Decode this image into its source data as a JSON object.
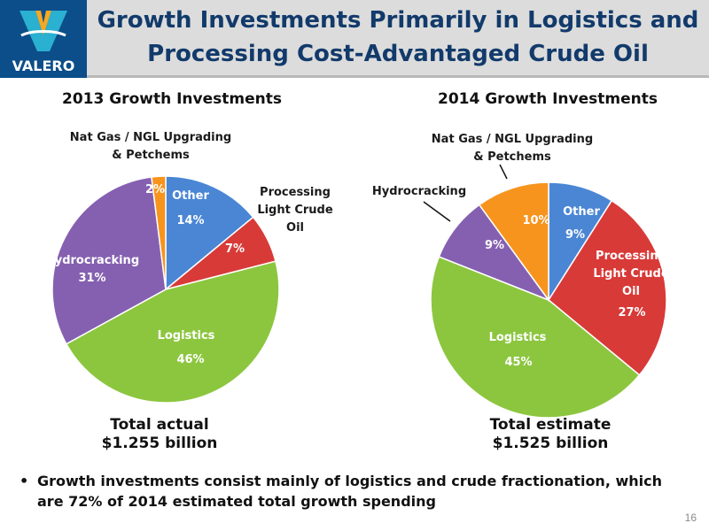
{
  "header": {
    "logo_text": "VALERO",
    "title": "Growth Investments Primarily in Logistics and\nProcessing Cost-Advantaged Crude Oil"
  },
  "chart_data": [
    {
      "type": "pie",
      "title": "2013 Growth Investments",
      "slices": [
        {
          "name": "Other",
          "value": 14,
          "label": "14%",
          "color": "#4a86d4"
        },
        {
          "name": "Processing Light Crude Oil",
          "value": 7,
          "label": "7%",
          "color": "#d83a38"
        },
        {
          "name": "Logistics",
          "value": 46,
          "label": "46%",
          "color": "#8cc63f"
        },
        {
          "name": "Hydrocracking",
          "value": 31,
          "label": "31%",
          "color": "#8560b0"
        },
        {
          "name": "Nat Gas / NGL Upgrading & Petchems",
          "value": 2,
          "label": "2%",
          "color": "#f7941d"
        }
      ],
      "labels": {
        "other": "Other",
        "processing": "Processing\nLight Crude\nOil",
        "logistics": "Logistics",
        "hydrocracking": "Hydrocracking",
        "natgas": "Nat Gas / NGL Upgrading\n& Petchems"
      },
      "total": "Total actual\n$1.255 billion"
    },
    {
      "type": "pie",
      "title": "2014 Growth Investments",
      "slices": [
        {
          "name": "Other",
          "value": 9,
          "label": "9%",
          "color": "#4a86d4"
        },
        {
          "name": "Processing Light Crude Oil",
          "value": 27,
          "label": "27%",
          "color": "#d83a38"
        },
        {
          "name": "Logistics",
          "value": 45,
          "label": "45%",
          "color": "#8cc63f"
        },
        {
          "name": "Hydrocracking",
          "value": 9,
          "label": "9%",
          "color": "#8560b0"
        },
        {
          "name": "Nat Gas / NGL Upgrading & Petchems",
          "value": 10,
          "label": "10%",
          "color": "#f7941d"
        }
      ],
      "labels": {
        "other": "Other",
        "processing": "Processing\nLight Crude\nOil",
        "logistics": "Logistics",
        "hydrocracking": "Hydrocracking",
        "natgas": "Nat Gas / NGL Upgrading\n& Petchems"
      },
      "total": "Total estimate\n$1.525 billion"
    }
  ],
  "bullet": {
    "marker": "•",
    "text": "Growth investments consist mainly of logistics and crude fractionation, which are 72% of 2014 estimated total growth spending"
  },
  "page_number": "16"
}
